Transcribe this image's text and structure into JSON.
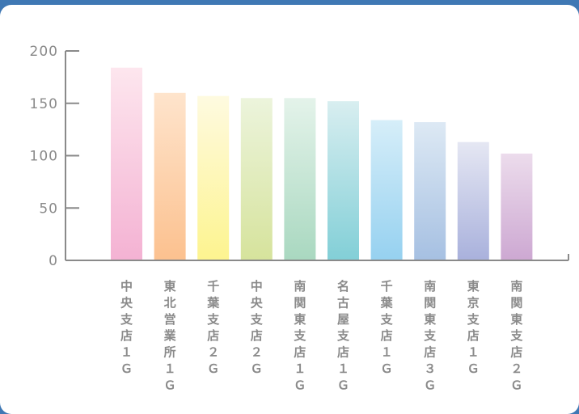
{
  "chart_data": {
    "type": "bar",
    "categories": [
      "中央支店1G",
      "東北営業所1G",
      "千葉支店2G",
      "中央支店2G",
      "南関東支店1G",
      "名古屋支店1G",
      "千葉支店1G",
      "南関東支店3G",
      "東京支店1G",
      "南関東支店2G"
    ],
    "values": [
      184,
      160,
      157,
      155,
      155,
      152,
      134,
      132,
      113,
      102
    ],
    "ylim": [
      0,
      200
    ],
    "yticks": [
      "0",
      "50",
      "100",
      "150",
      "200"
    ],
    "title": "",
    "xlabel": "",
    "ylabel": "",
    "grid": false,
    "colors": [
      {
        "top": "#fde6ee",
        "bottom": "#f4b2d3"
      },
      {
        "top": "#fee4cc",
        "bottom": "#fcc18f"
      },
      {
        "top": "#fefae0",
        "bottom": "#fdf48f"
      },
      {
        "top": "#ecf4dc",
        "bottom": "#d6e39c"
      },
      {
        "top": "#e4f3ea",
        "bottom": "#a9d8c0"
      },
      {
        "top": "#d8eef0",
        "bottom": "#82cfd7"
      },
      {
        "top": "#d6eef9",
        "bottom": "#96d1f0"
      },
      {
        "top": "#dde9f4",
        "bottom": "#a6c0e2"
      },
      {
        "top": "#e5e7f3",
        "bottom": "#a9b1dc"
      },
      {
        "top": "#ecdcec",
        "bottom": "#cda8d2"
      }
    ]
  }
}
